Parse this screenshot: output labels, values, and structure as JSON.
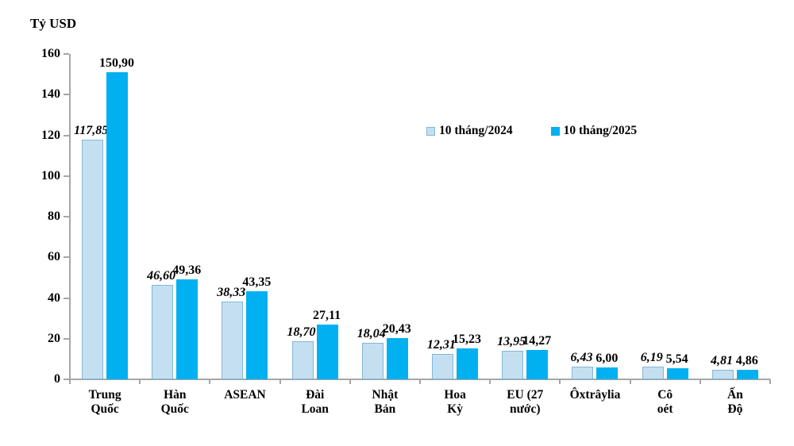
{
  "chart_data": {
    "type": "bar",
    "title": "Tỷ USD",
    "ylabel": "Tỷ USD",
    "ylim": [
      0,
      160
    ],
    "ytick_step": 20,
    "yticks": [
      "0",
      "20",
      "40",
      "60",
      "80",
      "100",
      "120",
      "140",
      "160"
    ],
    "grid": false,
    "legend_position": "upper-right-inside",
    "categories": [
      "Trung Quốc",
      "Hàn Quốc",
      "ASEAN",
      "Đài Loan",
      "Nhật Bản",
      "Hoa Kỳ",
      "EU (27 nước)",
      "Ôxtrâylia",
      "Cô oét",
      "Ấn Độ"
    ],
    "categories_lines": [
      [
        "Trung",
        "Quốc"
      ],
      [
        "Hàn",
        "Quốc"
      ],
      [
        "ASEAN"
      ],
      [
        "Đài",
        "Loan"
      ],
      [
        "Nhật",
        "Bản"
      ],
      [
        "Hoa",
        "Kỳ"
      ],
      [
        "EU (27",
        "nước)"
      ],
      [
        "Ôxtrâylia"
      ],
      [
        "Cô",
        "oét"
      ],
      [
        "Ấn",
        "Độ"
      ]
    ],
    "series": [
      {
        "name": "10 tháng/2024",
        "values": [
          117.85,
          46.6,
          38.33,
          18.7,
          18.04,
          12.31,
          13.95,
          6.43,
          6.19,
          4.81
        ],
        "labels": [
          "117,85",
          "46,60",
          "38,33",
          "18,70",
          "18,04",
          "12,31",
          "13,95",
          "6,43",
          "6,19",
          "4,81"
        ],
        "fill": "#c4e0f0",
        "border": "#82b6da",
        "label_style": "bold-italic"
      },
      {
        "name": "10 tháng/2025",
        "values": [
          150.9,
          49.36,
          43.35,
          27.11,
          20.43,
          15.23,
          14.27,
          6.0,
          5.54,
          4.86
        ],
        "labels": [
          "150,90",
          "49,36",
          "43,35",
          "27,11",
          "20,43",
          "15,23",
          "14,27",
          "6,00",
          "5,54",
          "4,86"
        ],
        "fill": "#00b0f0",
        "border": "#00b0f0",
        "label_style": "bold"
      }
    ],
    "colors": {
      "axis": "#a6a6a6",
      "text": "#000000",
      "background": "#ffffff"
    }
  }
}
